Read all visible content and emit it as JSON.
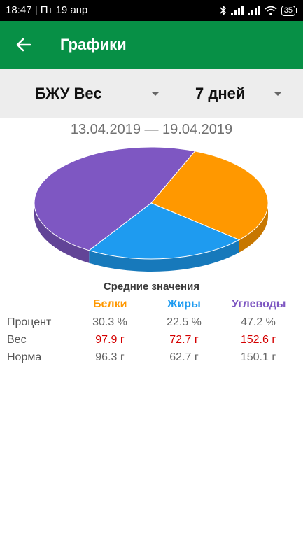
{
  "status": {
    "time_date": "18:47 | Пт 19 апр",
    "battery": "35"
  },
  "appbar": {
    "title": "Графики",
    "back_icon": "arrow-left-icon"
  },
  "selectors": {
    "chart_type": "БЖУ Вес",
    "period": "7 дней"
  },
  "date_range": "13.04.2019 — 19.04.2019",
  "colors": {
    "protein": "#ff9800",
    "fat": "#1e9bf0",
    "carbs": "#7e57c2",
    "appbar": "#079046",
    "highlight": "#d40000"
  },
  "chart_data": {
    "type": "pie",
    "categories": [
      "Белки",
      "Жиры",
      "Углеводы"
    ],
    "values": [
      30.3,
      22.5,
      47.2
    ],
    "colors": [
      "#ff9800",
      "#1e9bf0",
      "#7e57c2"
    ]
  },
  "summary": {
    "title": "Средние значения",
    "columns": [
      "Белки",
      "Жиры",
      "Углеводы"
    ],
    "rows": [
      {
        "label": "Процент",
        "values": [
          "30.3 %",
          "22.5 %",
          "47.2 %"
        ],
        "highlight": false
      },
      {
        "label": "Вес",
        "values": [
          "97.9 г",
          "72.7 г",
          "152.6 г"
        ],
        "highlight": true
      },
      {
        "label": "Норма",
        "values": [
          "96.3 г",
          "62.7 г",
          "150.1 г"
        ],
        "highlight": false
      }
    ]
  }
}
